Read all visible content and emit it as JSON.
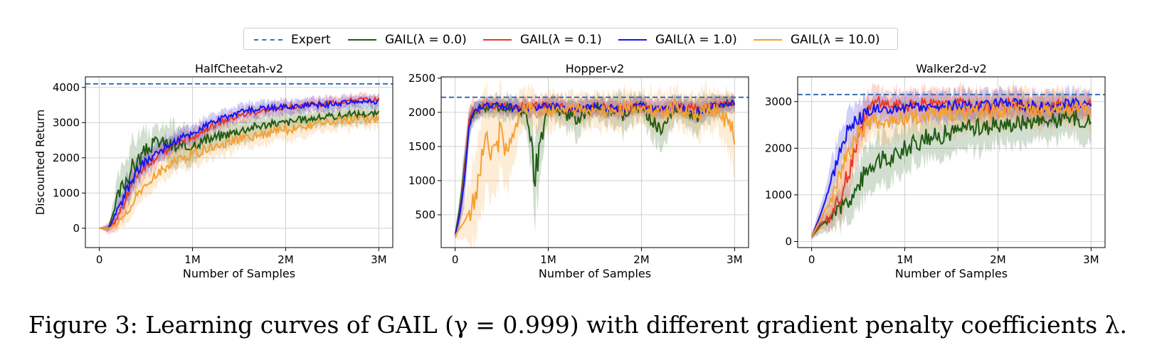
{
  "legend": {
    "items": [
      {
        "label": "Expert",
        "color": "#3a6fb0",
        "style": "dashed"
      },
      {
        "label": "GAIL(λ = 0.0)",
        "color": "#1e5c12",
        "style": "solid"
      },
      {
        "label": "GAIL(λ = 0.1)",
        "color": "#e8392a",
        "style": "solid"
      },
      {
        "label": "GAIL(λ = 1.0)",
        "color": "#1515f0",
        "style": "solid"
      },
      {
        "label": "GAIL(λ = 10.0)",
        "color": "#f5a030",
        "style": "solid"
      }
    ]
  },
  "caption": "Figure 3: Learning curves of GAIL (γ = 0.999) with different gradient penalty coefficients λ.",
  "chart_data": [
    {
      "type": "line",
      "title": "HalfCheetah-v2",
      "xlabel": "Number of Samples",
      "ylabel": "Discounted Return",
      "xlim": [
        -0.15,
        3.15
      ],
      "ylim": [
        -550,
        4300
      ],
      "xticks": [
        0,
        1,
        2,
        3
      ],
      "xtick_labels": [
        "0",
        "1M",
        "2M",
        "3M"
      ],
      "yticks": [
        0,
        1000,
        2000,
        3000,
        4000
      ],
      "ytick_labels": [
        "0",
        "1000",
        "2000",
        "3000",
        "4000"
      ],
      "grid": true,
      "expert": 4100,
      "series": [
        {
          "name": "GAIL(λ = 0.0)",
          "color": "#1e5c12",
          "x": [
            0,
            0.1,
            0.2,
            0.3,
            0.4,
            0.5,
            0.6,
            0.7,
            0.8,
            0.9,
            1.0,
            1.2,
            1.4,
            1.6,
            1.8,
            2.0,
            2.2,
            2.4,
            2.6,
            2.8,
            3.0
          ],
          "y": [
            0,
            0,
            900,
            1500,
            1900,
            2200,
            2450,
            2450,
            2300,
            2250,
            2400,
            2550,
            2700,
            2850,
            2950,
            3000,
            3100,
            3150,
            3200,
            3250,
            3250
          ],
          "spread": [
            0,
            100,
            500,
            700,
            600,
            500,
            400,
            400,
            600,
            500,
            400,
            350,
            300,
            300,
            250,
            250,
            250,
            200,
            250,
            250,
            200
          ]
        },
        {
          "name": "GAIL(λ = 0.1)",
          "color": "#e8392a",
          "x": [
            0,
            0.1,
            0.2,
            0.3,
            0.4,
            0.5,
            0.6,
            0.7,
            0.8,
            0.9,
            1.0,
            1.2,
            1.4,
            1.6,
            1.8,
            2.0,
            2.2,
            2.4,
            2.6,
            2.8,
            3.0
          ],
          "y": [
            0,
            0,
            300,
            1000,
            1500,
            1800,
            2000,
            2200,
            2350,
            2500,
            2600,
            2900,
            3100,
            3250,
            3350,
            3450,
            3500,
            3550,
            3600,
            3650,
            3650
          ],
          "spread": [
            0,
            150,
            300,
            400,
            350,
            300,
            300,
            250,
            250,
            250,
            250,
            200,
            200,
            200,
            180,
            180,
            170,
            170,
            160,
            150,
            150
          ]
        },
        {
          "name": "GAIL(λ = 1.0)",
          "color": "#1515f0",
          "x": [
            0,
            0.1,
            0.2,
            0.3,
            0.4,
            0.5,
            0.6,
            0.7,
            0.8,
            0.9,
            1.0,
            1.2,
            1.4,
            1.6,
            1.8,
            2.0,
            2.2,
            2.4,
            2.6,
            2.8,
            3.0
          ],
          "y": [
            0,
            0,
            500,
            1100,
            1600,
            1900,
            2100,
            2300,
            2450,
            2600,
            2700,
            3000,
            3200,
            3350,
            3400,
            3450,
            3500,
            3500,
            3550,
            3600,
            3600
          ],
          "spread": [
            0,
            100,
            300,
            350,
            300,
            300,
            280,
            260,
            250,
            250,
            240,
            220,
            200,
            200,
            190,
            190,
            180,
            180,
            170,
            170,
            160
          ]
        },
        {
          "name": "GAIL(λ = 10.0)",
          "color": "#f5a030",
          "x": [
            0,
            0.1,
            0.2,
            0.3,
            0.4,
            0.5,
            0.6,
            0.7,
            0.8,
            0.9,
            1.0,
            1.2,
            1.4,
            1.6,
            1.8,
            2.0,
            2.2,
            2.4,
            2.6,
            2.8,
            3.0
          ],
          "y": [
            0,
            0,
            100,
            500,
            900,
            1200,
            1500,
            1700,
            1900,
            2000,
            2100,
            2300,
            2450,
            2600,
            2700,
            2800,
            2900,
            3000,
            3050,
            3100,
            3100
          ],
          "spread": [
            0,
            100,
            250,
            300,
            300,
            300,
            300,
            300,
            300,
            320,
            320,
            300,
            300,
            280,
            300,
            300,
            280,
            250,
            250,
            250,
            220
          ]
        }
      ]
    },
    {
      "type": "line",
      "title": "Hopper-v2",
      "xlabel": "Number of Samples",
      "ylabel": "",
      "xlim": [
        -0.15,
        3.15
      ],
      "ylim": [
        20,
        2520
      ],
      "xticks": [
        0,
        1,
        2,
        3
      ],
      "xtick_labels": [
        "0",
        "1M",
        "2M",
        "3M"
      ],
      "yticks": [
        500,
        1000,
        1500,
        2000,
        2500
      ],
      "ytick_labels": [
        "500",
        "1000",
        "1500",
        "2000",
        "2500"
      ],
      "grid": true,
      "expert": 2220,
      "series": [
        {
          "name": "GAIL(λ = 0.0)",
          "color": "#1e5c12",
          "x": [
            0,
            0.05,
            0.1,
            0.15,
            0.2,
            0.3,
            0.5,
            0.7,
            0.8,
            0.85,
            1.0,
            1.3,
            1.5,
            1.8,
            2.0,
            2.2,
            2.4,
            2.6,
            2.8,
            3.0
          ],
          "y": [
            200,
            600,
            1200,
            1800,
            2000,
            2050,
            2080,
            2050,
            1800,
            1000,
            2100,
            1900,
            2100,
            1950,
            2100,
            1700,
            2100,
            1900,
            2100,
            2150
          ],
          "spread": [
            50,
            200,
            300,
            250,
            150,
            120,
            150,
            150,
            300,
            600,
            150,
            250,
            150,
            250,
            150,
            300,
            150,
            250,
            150,
            100
          ]
        },
        {
          "name": "GAIL(λ = 0.1)",
          "color": "#e8392a",
          "x": [
            0,
            0.05,
            0.1,
            0.15,
            0.2,
            0.3,
            0.5,
            0.7,
            1.0,
            1.3,
            1.5,
            1.8,
            2.0,
            2.2,
            2.4,
            2.6,
            2.8,
            3.0
          ],
          "y": [
            200,
            500,
            1100,
            1900,
            2050,
            2100,
            2100,
            2080,
            2100,
            2050,
            2100,
            2050,
            2100,
            2050,
            2100,
            2050,
            2100,
            2150
          ],
          "spread": [
            50,
            200,
            300,
            200,
            150,
            100,
            120,
            120,
            120,
            130,
            120,
            130,
            120,
            130,
            120,
            130,
            120,
            100
          ]
        },
        {
          "name": "GAIL(λ = 1.0)",
          "color": "#1515f0",
          "x": [
            0,
            0.05,
            0.1,
            0.15,
            0.2,
            0.3,
            0.5,
            0.7,
            1.0,
            1.3,
            1.5,
            1.8,
            2.0,
            2.2,
            2.4,
            2.6,
            2.8,
            3.0
          ],
          "y": [
            200,
            500,
            1000,
            1800,
            2050,
            2100,
            2100,
            2050,
            2100,
            2050,
            2080,
            2050,
            2100,
            2050,
            2100,
            2000,
            2100,
            2150
          ],
          "spread": [
            50,
            200,
            300,
            200,
            120,
            100,
            100,
            120,
            110,
            120,
            110,
            120,
            110,
            120,
            110,
            140,
            110,
            100
          ]
        },
        {
          "name": "GAIL(λ = 10.0)",
          "color": "#f5a030",
          "x": [
            0,
            0.1,
            0.2,
            0.3,
            0.4,
            0.5,
            0.6,
            0.7,
            0.8,
            1.0,
            1.2,
            1.5,
            1.8,
            2.0,
            2.2,
            2.4,
            2.6,
            2.8,
            3.0
          ],
          "y": [
            200,
            400,
            700,
            1400,
            1550,
            1600,
            1650,
            2000,
            2050,
            2000,
            2050,
            2000,
            2050,
            2050,
            2000,
            2050,
            2000,
            2050,
            1750
          ],
          "spread": [
            50,
            250,
            500,
            700,
            650,
            600,
            500,
            300,
            250,
            250,
            200,
            250,
            250,
            200,
            300,
            250,
            300,
            250,
            500
          ]
        }
      ]
    },
    {
      "type": "line",
      "title": "Walker2d-v2",
      "xlabel": "Number of Samples",
      "ylabel": "",
      "xlim": [
        -0.15,
        3.15
      ],
      "ylim": [
        -130,
        3530
      ],
      "xticks": [
        0,
        1,
        2,
        3
      ],
      "xtick_labels": [
        "0",
        "1M",
        "2M",
        "3M"
      ],
      "yticks": [
        0,
        1000,
        2000,
        3000
      ],
      "ytick_labels": [
        "0",
        "1000",
        "2000",
        "3000"
      ],
      "grid": true,
      "expert": 3150,
      "series": [
        {
          "name": "GAIL(λ = 0.0)",
          "color": "#1e5c12",
          "x": [
            0,
            0.1,
            0.2,
            0.3,
            0.4,
            0.5,
            0.6,
            0.7,
            0.8,
            1.0,
            1.2,
            1.4,
            1.6,
            1.8,
            2.0,
            2.2,
            2.4,
            2.6,
            2.8,
            3.0
          ],
          "y": [
            100,
            350,
            500,
            700,
            900,
            1200,
            1600,
            1800,
            1700,
            2000,
            2200,
            2300,
            2400,
            2450,
            2500,
            2550,
            2600,
            2600,
            2650,
            2600
          ],
          "spread": [
            50,
            150,
            250,
            350,
            400,
            500,
            500,
            500,
            500,
            450,
            450,
            450,
            450,
            450,
            400,
            400,
            400,
            400,
            400,
            400
          ]
        },
        {
          "name": "GAIL(λ = 0.1)",
          "color": "#e8392a",
          "x": [
            0,
            0.1,
            0.2,
            0.3,
            0.4,
            0.5,
            0.6,
            0.7,
            0.8,
            1.0,
            1.2,
            1.4,
            1.6,
            1.8,
            2.0,
            2.2,
            2.4,
            2.6,
            2.8,
            3.0
          ],
          "y": [
            100,
            400,
            500,
            900,
            1500,
            2300,
            2800,
            3000,
            2950,
            2900,
            2950,
            2900,
            2950,
            2900,
            2900,
            2950,
            2850,
            2900,
            2900,
            2950
          ],
          "spread": [
            50,
            150,
            250,
            400,
            500,
            450,
            350,
            300,
            300,
            300,
            300,
            300,
            300,
            300,
            300,
            300,
            300,
            300,
            300,
            250
          ]
        },
        {
          "name": "GAIL(λ = 1.0)",
          "color": "#1515f0",
          "x": [
            0,
            0.1,
            0.2,
            0.3,
            0.4,
            0.5,
            0.6,
            0.7,
            0.8,
            1.0,
            1.2,
            1.4,
            1.6,
            1.8,
            2.0,
            2.2,
            2.4,
            2.6,
            2.8,
            3.0
          ],
          "y": [
            100,
            600,
            1200,
            2000,
            2400,
            2600,
            2750,
            2850,
            2850,
            2850,
            2900,
            2900,
            2900,
            2900,
            2950,
            2950,
            2900,
            2900,
            2950,
            2950
          ],
          "spread": [
            50,
            200,
            350,
            400,
            400,
            350,
            300,
            300,
            280,
            280,
            280,
            280,
            280,
            280,
            270,
            270,
            280,
            280,
            270,
            250
          ]
        },
        {
          "name": "GAIL(λ = 10.0)",
          "color": "#f5a030",
          "x": [
            0,
            0.1,
            0.2,
            0.3,
            0.4,
            0.5,
            0.6,
            0.7,
            0.8,
            1.0,
            1.2,
            1.4,
            1.6,
            1.8,
            2.0,
            2.2,
            2.4,
            2.6,
            2.8,
            3.0
          ],
          "y": [
            100,
            500,
            900,
            1400,
            1900,
            2300,
            2500,
            2600,
            2600,
            2650,
            2700,
            2750,
            2750,
            2800,
            2800,
            2850,
            2800,
            2850,
            2850,
            2850
          ],
          "spread": [
            50,
            200,
            350,
            450,
            500,
            450,
            400,
            400,
            400,
            380,
            380,
            380,
            370,
            370,
            360,
            360,
            360,
            360,
            350,
            350
          ]
        }
      ]
    }
  ]
}
